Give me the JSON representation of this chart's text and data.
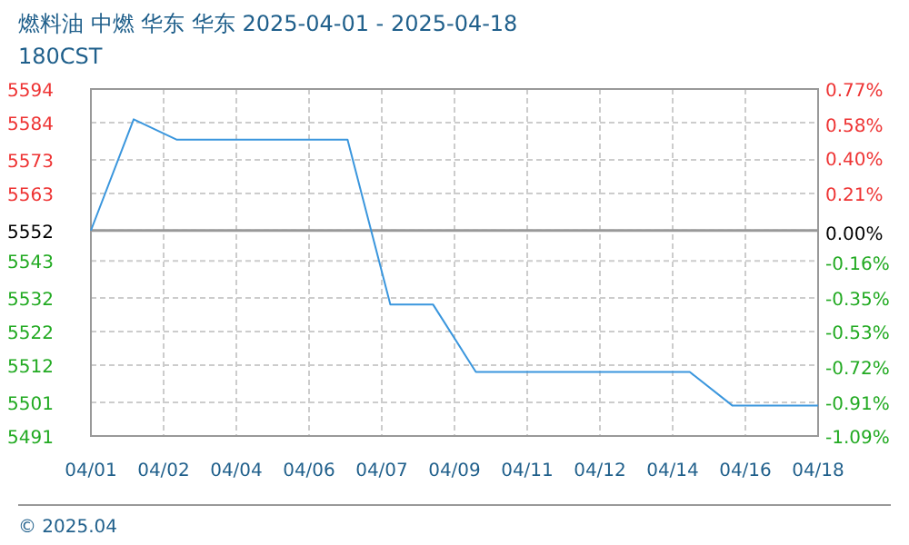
{
  "chart_data": {
    "type": "line",
    "title": "燃料油 中燃 华东 华东 2025-04-01 - 2025-04-18",
    "subtitle": "180CST",
    "x": [
      "2025-04-01",
      "2025-04-02",
      "2025-04-03",
      "2025-04-04",
      "2025-04-05",
      "2025-04-06",
      "2025-04-07",
      "2025-04-08",
      "2025-04-09",
      "2025-04-10",
      "2025-04-11",
      "2025-04-12",
      "2025-04-13",
      "2025-04-14",
      "2025-04-15",
      "2025-04-16",
      "2025-04-17",
      "2025-04-18"
    ],
    "series": [
      {
        "color": "#3a96dd",
        "values": [
          5552,
          5585,
          5579,
          5579,
          5579,
          5579,
          5579,
          5530,
          5530,
          5510,
          5510,
          5510,
          5510,
          5510,
          5510,
          5500,
          5500,
          5500
        ]
      }
    ],
    "xlim": [
      "2025-04-01",
      "2025-04-18"
    ],
    "xticks": [
      {
        "value": "2025-04-01",
        "label": "04/01"
      },
      {
        "value": "2025-04-02T16:48",
        "label": "04/02"
      },
      {
        "value": "2025-04-04T09:36",
        "label": "04/04"
      },
      {
        "value": "2025-04-06T02:24",
        "label": "04/06"
      },
      {
        "value": "2025-04-07T19:12",
        "label": "04/07"
      },
      {
        "value": "2025-04-09T12:00",
        "label": "04/09"
      },
      {
        "value": "2025-04-11T04:48",
        "label": "04/11"
      },
      {
        "value": "2025-04-12T21:36",
        "label": "04/12"
      },
      {
        "value": "2025-04-14T14:24",
        "label": "04/14"
      },
      {
        "value": "2025-04-16T07:12",
        "label": "04/16"
      },
      {
        "value": "2025-04-18",
        "label": "04/18"
      }
    ],
    "ylim": [
      5491,
      5594
    ],
    "yticks": [
      5491,
      5501,
      5512,
      5522,
      5532,
      5543,
      5552,
      5563,
      5573,
      5584,
      5594
    ],
    "y2lim": [
      -1.09,
      0.77
    ],
    "y2ticks": [
      {
        "value": -1.09,
        "label": "-1.09%"
      },
      {
        "value": -0.91,
        "label": "-0.91%"
      },
      {
        "value": -0.72,
        "label": "-0.72%"
      },
      {
        "value": -0.53,
        "label": "-0.53%"
      },
      {
        "value": -0.35,
        "label": "-0.35%"
      },
      {
        "value": -0.16,
        "label": "-0.16%"
      },
      {
        "value": 0,
        "label": "0.00%"
      },
      {
        "value": 0.21,
        "label": "0.21%"
      },
      {
        "value": 0.4,
        "label": "0.40%"
      },
      {
        "value": 0.58,
        "label": "0.58%"
      },
      {
        "value": 0.77,
        "label": "0.77%"
      }
    ],
    "ref_lines": [
      {
        "axis": "y",
        "value": 5552,
        "color": "#999999",
        "line_style": "solid"
      }
    ],
    "grid": true,
    "marker": "none",
    "line_style": "solid",
    "annotations": [
      "© 2025.04"
    ]
  }
}
